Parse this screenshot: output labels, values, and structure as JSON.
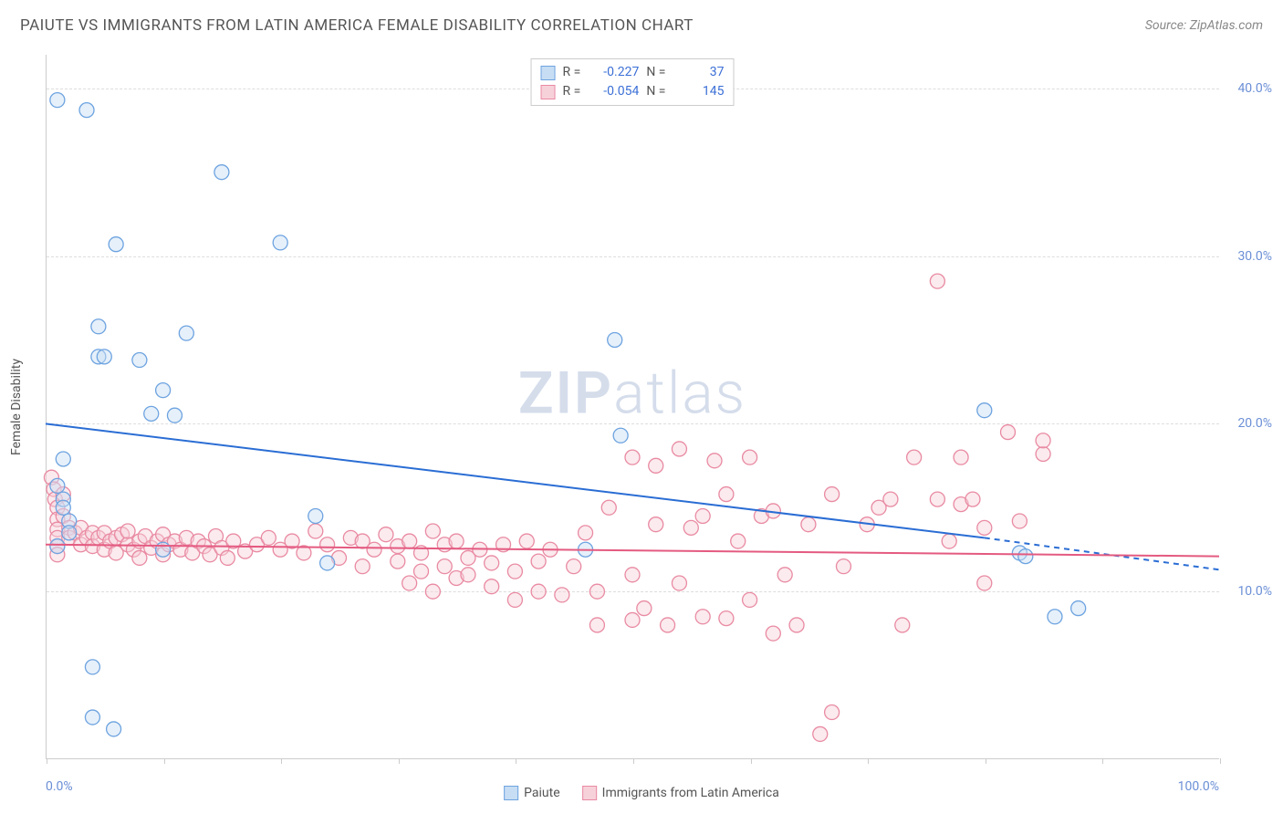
{
  "title": "PAIUTE VS IMMIGRANTS FROM LATIN AMERICA FEMALE DISABILITY CORRELATION CHART",
  "source": "Source: ZipAtlas.com",
  "watermark_a": "ZIP",
  "watermark_b": "atlas",
  "y_axis_title": "Female Disability",
  "axes": {
    "x_min_label": "0.0%",
    "x_max_label": "100.0%",
    "x_min": 0,
    "x_max": 100,
    "y_min": 0,
    "y_max": 42,
    "y_ticks": [
      {
        "value": 10,
        "label": "10.0%"
      },
      {
        "value": 20,
        "label": "20.0%"
      },
      {
        "value": 30,
        "label": "30.0%"
      },
      {
        "value": 40,
        "label": "40.0%"
      }
    ],
    "x_ticks_count": 11
  },
  "colors": {
    "series_a_fill": "#c7ddf4",
    "series_a_stroke": "#6da3e0",
    "series_a_line": "#2a6dd4",
    "series_b_fill": "#f7d1da",
    "series_b_stroke": "#e98aa2",
    "series_b_line": "#e45a80",
    "grid": "#dddddd",
    "axis": "#cccccc",
    "text": "#555555",
    "value_text": "#3b6fd6",
    "y_tick_text": "#6b8fd6"
  },
  "marker": {
    "radius": 8,
    "fill_opacity": 0.45,
    "stroke_width": 1.3
  },
  "series": [
    {
      "id": "paiute",
      "name": "Paiute",
      "color_fill": "#c7ddf4",
      "color_stroke": "#6da3e0",
      "line_color": "#2a6dd4",
      "R": "-0.227",
      "N": "37",
      "trend": {
        "x1": 0,
        "y1": 20,
        "x2_solid": 80,
        "y2_solid": 13.2,
        "x2_dash": 100,
        "y2_dash": 11.3
      },
      "points": [
        [
          1,
          39.3
        ],
        [
          1,
          16.3
        ],
        [
          1.5,
          17.9
        ],
        [
          1.5,
          15.5
        ],
        [
          1.5,
          15
        ],
        [
          1,
          12.7
        ],
        [
          2,
          14.2
        ],
        [
          2,
          13.5
        ],
        [
          3.5,
          38.7
        ],
        [
          4,
          5.5
        ],
        [
          4.5,
          25.8
        ],
        [
          4.5,
          24
        ],
        [
          4,
          2.5
        ],
        [
          5,
          24
        ],
        [
          5.8,
          1.8
        ],
        [
          6,
          30.7
        ],
        [
          8,
          23.8
        ],
        [
          9,
          20.6
        ],
        [
          10,
          12.5
        ],
        [
          10,
          22
        ],
        [
          11,
          20.5
        ],
        [
          12,
          25.4
        ],
        [
          15,
          35
        ],
        [
          20,
          30.8
        ],
        [
          23,
          14.5
        ],
        [
          24,
          11.7
        ],
        [
          46,
          12.5
        ],
        [
          48.5,
          25
        ],
        [
          49,
          19.3
        ],
        [
          80,
          20.8
        ],
        [
          83,
          12.3
        ],
        [
          83.5,
          12.1
        ],
        [
          86,
          8.5
        ],
        [
          88,
          9
        ]
      ]
    },
    {
      "id": "immigrants",
      "name": "Immigrants from Latin America",
      "color_fill": "#f7d1da",
      "color_stroke": "#e98aa2",
      "line_color": "#e45a80",
      "R": "-0.054",
      "N": "145",
      "trend": {
        "x1": 0,
        "y1": 12.8,
        "x2_solid": 100,
        "y2_solid": 12.1,
        "x2_dash": 100,
        "y2_dash": 12.1
      },
      "points": [
        [
          0.5,
          16.8
        ],
        [
          0.7,
          16.1
        ],
        [
          0.8,
          15.5
        ],
        [
          1,
          15
        ],
        [
          1,
          14.3
        ],
        [
          1,
          13.7
        ],
        [
          1,
          13.2
        ],
        [
          1,
          12.7
        ],
        [
          1,
          12.2
        ],
        [
          1.5,
          15.8
        ],
        [
          1.5,
          14.5
        ],
        [
          2,
          13.8
        ],
        [
          2,
          13.2
        ],
        [
          2.5,
          13.5
        ],
        [
          3,
          13.8
        ],
        [
          3,
          12.8
        ],
        [
          3.5,
          13.2
        ],
        [
          4,
          13.5
        ],
        [
          4,
          12.7
        ],
        [
          4.5,
          13.2
        ],
        [
          5,
          13.5
        ],
        [
          5,
          12.5
        ],
        [
          5.5,
          13.0
        ],
        [
          6,
          13.2
        ],
        [
          6,
          12.3
        ],
        [
          6.5,
          13.4
        ],
        [
          7,
          12.8
        ],
        [
          7,
          13.6
        ],
        [
          7.5,
          12.5
        ],
        [
          8,
          13.0
        ],
        [
          8,
          12.0
        ],
        [
          8.5,
          13.3
        ],
        [
          9,
          12.6
        ],
        [
          9.5,
          13.0
        ],
        [
          10,
          13.4
        ],
        [
          10,
          12.2
        ],
        [
          10.5,
          12.8
        ],
        [
          11,
          13.0
        ],
        [
          11.5,
          12.5
        ],
        [
          12,
          13.2
        ],
        [
          12.5,
          12.3
        ],
        [
          13,
          13.0
        ],
        [
          13.5,
          12.7
        ],
        [
          14,
          12.2
        ],
        [
          14.5,
          13.3
        ],
        [
          15,
          12.6
        ],
        [
          15.5,
          12.0
        ],
        [
          16,
          13.0
        ],
        [
          17,
          12.4
        ],
        [
          18,
          12.8
        ],
        [
          19,
          13.2
        ],
        [
          20,
          12.5
        ],
        [
          21,
          13.0
        ],
        [
          22,
          12.3
        ],
        [
          23,
          13.6
        ],
        [
          24,
          12.8
        ],
        [
          25,
          12.0
        ],
        [
          26,
          13.2
        ],
        [
          27,
          11.5
        ],
        [
          27,
          13.0
        ],
        [
          28,
          12.5
        ],
        [
          29,
          13.4
        ],
        [
          30,
          11.8
        ],
        [
          30,
          12.7
        ],
        [
          31,
          10.5
        ],
        [
          31,
          13.0
        ],
        [
          32,
          11.2
        ],
        [
          32,
          12.3
        ],
        [
          33,
          13.6
        ],
        [
          33,
          10.0
        ],
        [
          34,
          11.5
        ],
        [
          34,
          12.8
        ],
        [
          35,
          10.8
        ],
        [
          35,
          13.0
        ],
        [
          36,
          11.0
        ],
        [
          36,
          12.0
        ],
        [
          37,
          12.5
        ],
        [
          38,
          10.3
        ],
        [
          38,
          11.7
        ],
        [
          39,
          12.8
        ],
        [
          40,
          9.5
        ],
        [
          40,
          11.2
        ],
        [
          41,
          13.0
        ],
        [
          42,
          10.0
        ],
        [
          42,
          11.8
        ],
        [
          43,
          12.5
        ],
        [
          44,
          9.8
        ],
        [
          45,
          11.5
        ],
        [
          46,
          13.5
        ],
        [
          47,
          10.0
        ],
        [
          47,
          8.0
        ],
        [
          48,
          15.0
        ],
        [
          50,
          8.3
        ],
        [
          50,
          11.0
        ],
        [
          50,
          18.0
        ],
        [
          51,
          9.0
        ],
        [
          52,
          14.0
        ],
        [
          52,
          17.5
        ],
        [
          53,
          8.0
        ],
        [
          54,
          18.5
        ],
        [
          54,
          10.5
        ],
        [
          55,
          13.8
        ],
        [
          56,
          8.5
        ],
        [
          56,
          14.5
        ],
        [
          57,
          17.8
        ],
        [
          58,
          15.8
        ],
        [
          58,
          8.4
        ],
        [
          59,
          13.0
        ],
        [
          60,
          9.5
        ],
        [
          60,
          18.0
        ],
        [
          61,
          14.5
        ],
        [
          62,
          7.5
        ],
        [
          62,
          14.8
        ],
        [
          63,
          11.0
        ],
        [
          64,
          8.0
        ],
        [
          65,
          14.0
        ],
        [
          66,
          1.5
        ],
        [
          67,
          2.8
        ],
        [
          67,
          15.8
        ],
        [
          68,
          11.5
        ],
        [
          70,
          14.0
        ],
        [
          71,
          15.0
        ],
        [
          72,
          15.5
        ],
        [
          73,
          8.0
        ],
        [
          74,
          18.0
        ],
        [
          76,
          28.5
        ],
        [
          76,
          15.5
        ],
        [
          77,
          13.0
        ],
        [
          78,
          18.0
        ],
        [
          78,
          15.2
        ],
        [
          79,
          15.5
        ],
        [
          80,
          10.5
        ],
        [
          80,
          13.8
        ],
        [
          82,
          19.5
        ],
        [
          83,
          14.2
        ],
        [
          85,
          18.2
        ],
        [
          85,
          19.0
        ]
      ]
    }
  ],
  "legend_bottom": {
    "item_a": "Paiute",
    "item_b": "Immigrants from Latin America"
  },
  "legend_stats_labels": {
    "r": "R =",
    "n": "N ="
  }
}
